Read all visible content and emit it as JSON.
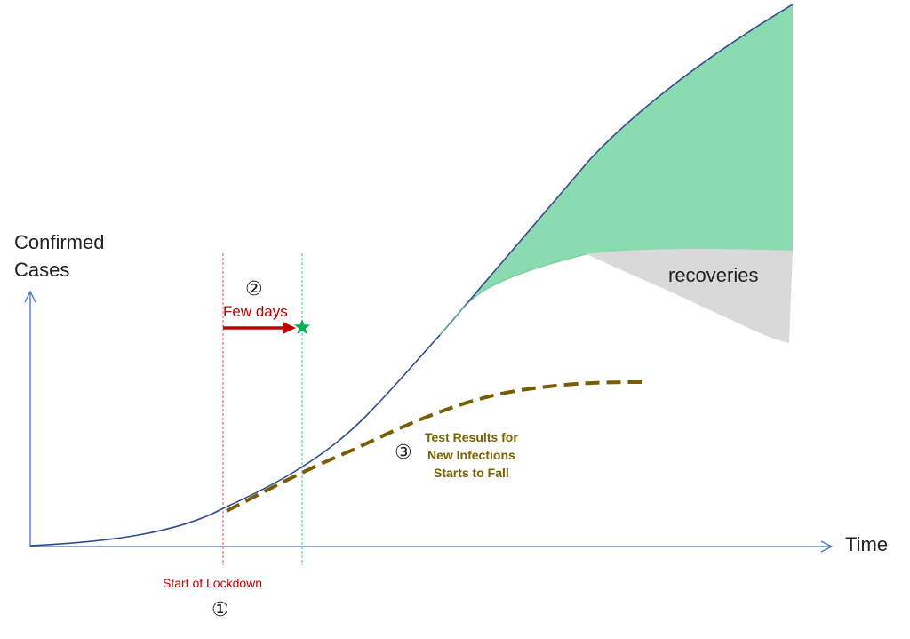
{
  "axes": {
    "y_label": "Confirmed\nCases",
    "x_label": "Time"
  },
  "annotations": {
    "marker_1": "①",
    "marker_2": "②",
    "marker_3": "③",
    "lockdown_label": "Start of Lockdown",
    "few_days_label": "Few days",
    "recoveries_label": "recoveries",
    "test_results_label": "Test Results for\nNew Infections\nStarts to Fall"
  },
  "colors": {
    "axis": "#4472c4",
    "cases_curve": "#2f4d8a",
    "lockdown_line": "#e05050",
    "effect_line": "#3fbf9f",
    "arrow": "#c00000",
    "star": "#00b050",
    "green_area": "#8adbb0",
    "gray_area": "#d9d9d9",
    "test_curve": "#7a5c00",
    "test_text": "#7a6000",
    "lockdown_text": "#c00000"
  }
}
